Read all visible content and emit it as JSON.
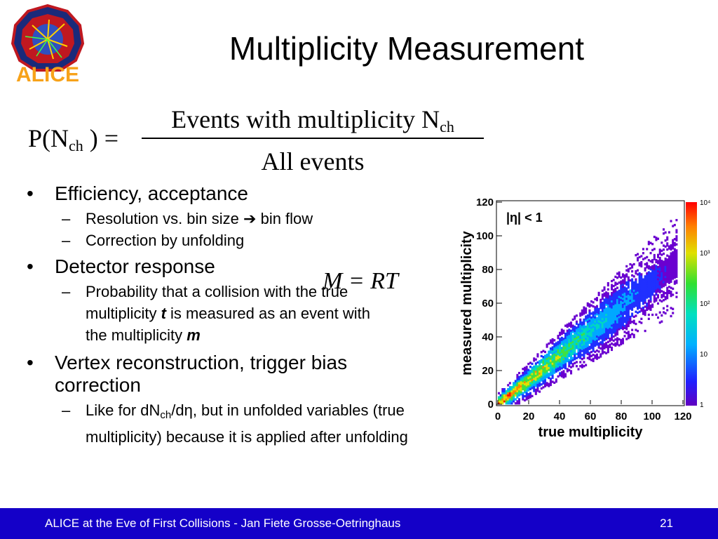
{
  "logo": {
    "text": "ALICE",
    "icon": "alice-logo"
  },
  "title": "Multiplicity Measurement",
  "formula": {
    "lhs_p": "P(N",
    "lhs_sub": "ch",
    "lhs_rest": ") =",
    "numerator": "Events with multiplicity N",
    "numerator_sub": "ch",
    "denominator": "All events"
  },
  "bullets": {
    "b1": "Efficiency, acceptance",
    "b1_sub1_a": "Resolution vs. bin size",
    "b1_sub1_arrow": "➔",
    "b1_sub1_b": "bin flow",
    "b1_sub2": "Correction by unfolding",
    "b2": "Detector response",
    "b2_formula": "M  = RT",
    "b2_sub1_a": "Probability that a collision with the true multiplicity",
    "b2_sub1_t": "t",
    "b2_sub1_b": "is measured as an event with the multiplicity",
    "b2_sub1_m": "m",
    "b3": "Vertex reconstruction, trigger bias correction",
    "b3_sub1_a": "Like for dN",
    "b3_sub1_sub": "ch",
    "b3_sub1_b": "/dη, but in unfolded variables (true multiplicity) because it is applied after unfolding"
  },
  "chart_data": {
    "type": "heatmap",
    "xlabel": "true multiplicity",
    "ylabel": "measured multiplicity",
    "annotation": "|η| < 1",
    "x_ticks": [
      "0",
      "20",
      "40",
      "60",
      "80",
      "100",
      "120"
    ],
    "y_ticks": [
      "0",
      "20",
      "40",
      "60",
      "80",
      "100",
      "120"
    ],
    "xlim": [
      0,
      120
    ],
    "ylim": [
      0,
      120
    ],
    "color_scale": {
      "scale": "log",
      "range": [
        1,
        10000
      ],
      "ticks": [
        "1",
        "10",
        "10²",
        "10³",
        "10⁴"
      ]
    },
    "description_points": [
      [
        0,
        0
      ],
      [
        20,
        14
      ],
      [
        40,
        29
      ],
      [
        60,
        43
      ],
      [
        80,
        58
      ],
      [
        100,
        72
      ],
      [
        115,
        83
      ]
    ]
  },
  "footer": {
    "text": "ALICE at the Eve of First Collisions  - Jan Fiete Grosse-Oetringhaus",
    "page": "21",
    "color": "#1400c8"
  }
}
